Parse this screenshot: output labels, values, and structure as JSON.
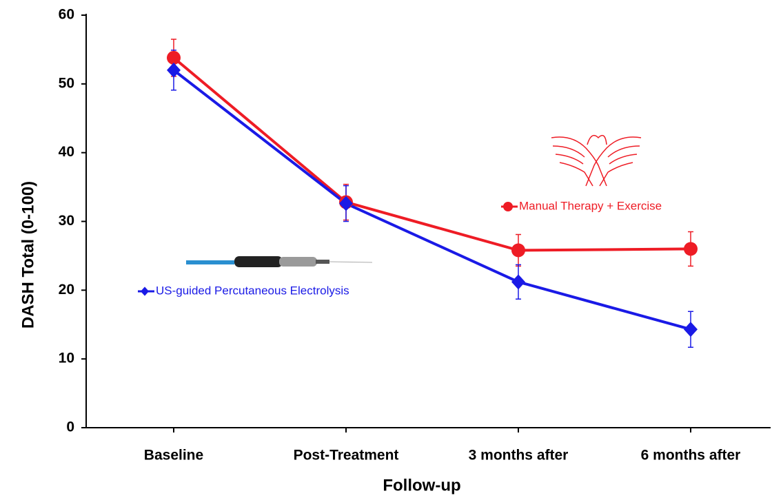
{
  "chart_data": {
    "type": "line",
    "x_label": "Follow-up",
    "y_label": "DASH Total (0-100)",
    "categories": [
      "Baseline",
      "Post-Treatment",
      "3 months after",
      "6 months after"
    ],
    "ylim": [
      0,
      60
    ],
    "yticks": [
      0,
      10,
      20,
      30,
      40,
      50,
      60
    ],
    "grid": false,
    "series": [
      {
        "name": "Manual Therapy + Exercise",
        "color": "#ee1c25",
        "marker": "circle",
        "values": [
          53.8,
          32.8,
          25.8,
          26.0
        ],
        "errors": [
          2.7,
          2.6,
          2.3,
          2.5
        ]
      },
      {
        "name": "US-guided Percutaneous Electrolysis",
        "color": "#1a1ae6",
        "marker": "diamond",
        "values": [
          52.0,
          32.6,
          21.2,
          14.3
        ],
        "errors": [
          2.9,
          2.6,
          2.5,
          2.6
        ]
      }
    ]
  }
}
